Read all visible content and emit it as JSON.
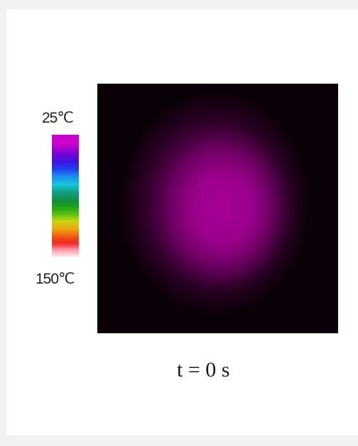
{
  "colorbar": {
    "top_label": "25℃",
    "bottom_label": "150℃",
    "colors": [
      "#c200d0",
      "#3f12e0",
      "#14c6d8",
      "#109040",
      "#c8d610",
      "#f05016",
      "#ffb4c4"
    ]
  },
  "thermal_image": {
    "background_color": "#0a0007",
    "hotspot_color": "#a80096"
  },
  "caption": "t = 0 s"
}
